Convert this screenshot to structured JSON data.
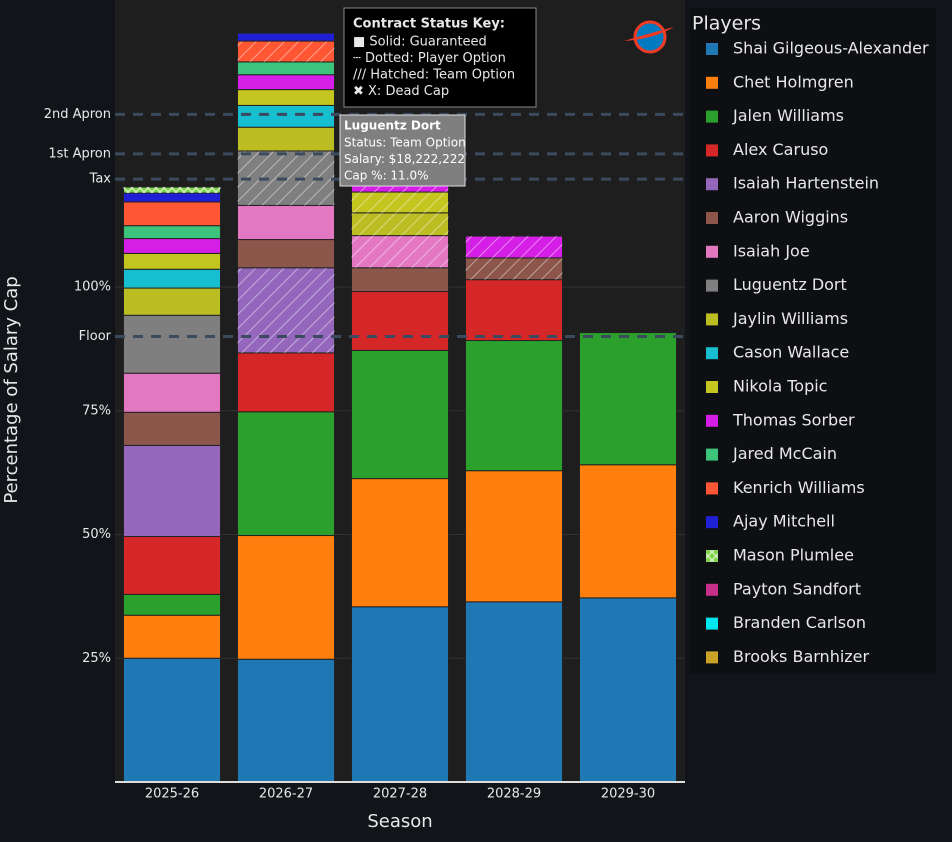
{
  "chart_data": {
    "type": "stacked_bar",
    "x_label": "Season",
    "y_label": "Percentage of Salary Cap",
    "categories": [
      "2025-26",
      "2026-27",
      "2027-28",
      "2028-29",
      "2029-30"
    ],
    "ylim": [
      0,
      158
    ],
    "yticks": [
      {
        "value": 25,
        "label": "25%"
      },
      {
        "value": 50,
        "label": "50%"
      },
      {
        "value": 75,
        "label": "75%"
      },
      {
        "value": 100,
        "label": "100%"
      }
    ],
    "reference_lines": [
      {
        "value": 90,
        "label": "Floor"
      },
      {
        "value": 121.8,
        "label": "Tax"
      },
      {
        "value": 126.9,
        "label": "1st Apron"
      },
      {
        "value": 134.9,
        "label": "2nd Apron"
      }
    ],
    "grid": true,
    "legend_title": "Players",
    "series": [
      {
        "name": "Shai Gilgeous-Alexander",
        "color": "#1f77b4",
        "values": [
          25,
          24.8,
          35.4,
          36.4,
          37.2
        ],
        "status": [
          "Guaranteed",
          "Guaranteed",
          "Guaranteed",
          "Guaranteed",
          "Guaranteed"
        ]
      },
      {
        "name": "Chet Holmgren",
        "color": "#ff7f0e",
        "values": [
          8.7,
          25,
          25.9,
          26.5,
          26.9
        ],
        "status": [
          "Guaranteed",
          "Guaranteed",
          "Guaranteed",
          "Guaranteed",
          "Guaranteed"
        ]
      },
      {
        "name": "Jalen Williams",
        "color": "#2ca02c",
        "values": [
          4.2,
          25,
          25.9,
          26.3,
          26.7
        ],
        "status": [
          "Guaranteed",
          "Guaranteed",
          "Guaranteed",
          "Guaranteed",
          "Guaranteed"
        ]
      },
      {
        "name": "Alex Caruso",
        "color": "#d62728",
        "values": [
          11.7,
          11.9,
          11.9,
          12.3,
          null
        ],
        "status": [
          "Guaranteed",
          "Guaranteed",
          "Guaranteed",
          "Guaranteed",
          null
        ]
      },
      {
        "name": "Isaiah Hartenstein",
        "color": "#9467bd",
        "values": [
          18.4,
          17.2,
          null,
          null,
          null
        ],
        "status": [
          "Guaranteed",
          "Team Option",
          null,
          null,
          null
        ]
      },
      {
        "name": "Aaron Wiggins",
        "color": "#8c564b",
        "values": [
          6.7,
          5.7,
          4.8,
          4.4,
          null
        ],
        "status": [
          "Guaranteed",
          "Guaranteed",
          "Guaranteed",
          "Team Option",
          null
        ]
      },
      {
        "name": "Isaiah Joe",
        "color": "#e377c2",
        "values": [
          7.9,
          6.9,
          6.5,
          null,
          null
        ],
        "status": [
          "Guaranteed",
          "Guaranteed",
          "Team Option",
          null,
          null
        ]
      },
      {
        "name": "Luguentz Dort",
        "color": "#7f7f7f",
        "values": [
          11.7,
          11.0,
          null,
          null,
          null
        ],
        "status": [
          "Guaranteed",
          "Team Option",
          null,
          null,
          null
        ]
      },
      {
        "name": "Jaylin Williams",
        "color": "#bcbd22",
        "values": [
          5.5,
          4.8,
          4.6,
          null,
          null
        ],
        "status": [
          "Guaranteed",
          "Guaranteed",
          "Team Option",
          null,
          null
        ]
      },
      {
        "name": "Cason Wallace",
        "color": "#17becf",
        "values": [
          3.8,
          4.4,
          null,
          null,
          null
        ],
        "status": [
          "Guaranteed",
          "Guaranteed",
          null,
          null,
          null
        ]
      },
      {
        "name": "Nikola Topic",
        "color": "#c4c51e",
        "values": [
          3.2,
          3.2,
          4.2,
          null,
          null
        ],
        "status": [
          "Guaranteed",
          "Guaranteed",
          "Team Option",
          null,
          null
        ]
      },
      {
        "name": "Thomas Sorber",
        "color": "#d51fe6",
        "values": [
          3.0,
          3.0,
          1.5,
          4.4,
          null
        ],
        "status": [
          "Guaranteed",
          "Guaranteed",
          "Team Option",
          "Team Option",
          null
        ]
      },
      {
        "name": "Jared McCain",
        "color": "#3cc47c",
        "values": [
          2.6,
          2.6,
          null,
          null,
          null
        ],
        "status": [
          "Guaranteed",
          "Guaranteed",
          null,
          null,
          null
        ]
      },
      {
        "name": "Kenrich Williams",
        "color": "#ff5733",
        "values": [
          4.8,
          4.2,
          null,
          null,
          null
        ],
        "status": [
          "Guaranteed",
          "Team Option",
          null,
          null,
          null
        ]
      },
      {
        "name": "Ajay Mitchell",
        "color": "#1f1fd6",
        "values": [
          1.8,
          1.6,
          null,
          null,
          null
        ],
        "status": [
          "Guaranteed",
          "Guaranteed",
          null,
          null,
          null
        ]
      },
      {
        "name": "Mason Plumlee",
        "color": "#7ed348",
        "values": [
          1.2,
          null,
          null,
          null,
          null
        ],
        "status": [
          "Dead Cap",
          null,
          null,
          null,
          null
        ]
      },
      {
        "name": "Payton Sandfort",
        "color": "#c72e8a",
        "values": [
          null,
          null,
          null,
          null,
          null
        ],
        "status": [
          null,
          null,
          null,
          null,
          null
        ]
      },
      {
        "name": "Branden Carlson",
        "color": "#00e5ee",
        "values": [
          null,
          null,
          null,
          null,
          null
        ],
        "status": [
          null,
          null,
          null,
          null,
          null
        ]
      },
      {
        "name": "Brooks Barnhizer",
        "color": "#c9a227",
        "values": [
          null,
          null,
          null,
          null,
          null
        ],
        "status": [
          null,
          null,
          null,
          null,
          null
        ]
      }
    ],
    "status_key": {
      "title": "Contract Status Key:",
      "lines": [
        "■ Solid: Guaranteed",
        "┄ Dotted: Player Option",
        "/// Hatched: Team Option",
        "✖ X: Dead Cap"
      ]
    },
    "tooltip": {
      "title": "Luguentz Dort",
      "lines": [
        "Status: Team Option",
        "Salary: $18,222,222",
        "Cap %: 11.0%"
      ]
    }
  }
}
